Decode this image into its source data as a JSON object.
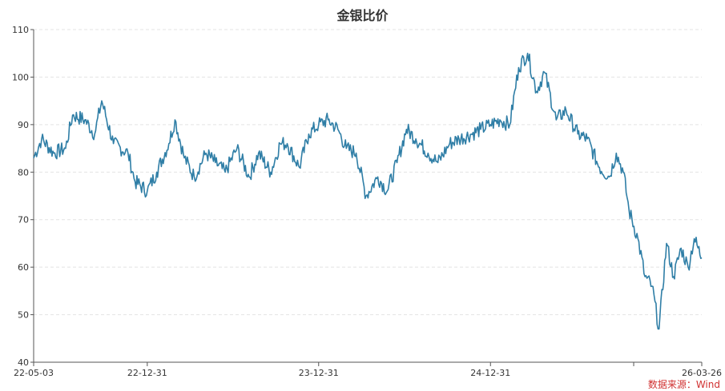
{
  "chart_data": {
    "type": "line",
    "title": "金银比价",
    "xlabel": "",
    "ylabel": "",
    "ylim": [
      40,
      110
    ],
    "yticks": [
      40,
      50,
      60,
      70,
      80,
      90,
      100,
      110
    ],
    "x_tick_labels": [
      "22-05-03",
      "22-12-31",
      "23-12-31",
      "24-12-31",
      "26-03-26"
    ],
    "grid": "horizontal-dashed",
    "series": [
      {
        "name": "",
        "color": "#2f7ea6",
        "x": [
          "2022-05-03",
          "2022-05-20",
          "2022-06-15",
          "2022-07-10",
          "2022-07-25",
          "2022-08-20",
          "2022-09-10",
          "2022-09-25",
          "2022-10-20",
          "2022-11-20",
          "2022-12-05",
          "2022-12-31",
          "2023-01-20",
          "2023-02-15",
          "2023-02-28",
          "2023-03-20",
          "2023-04-10",
          "2023-05-05",
          "2023-05-25",
          "2023-06-15",
          "2023-07-10",
          "2023-08-05",
          "2023-08-25",
          "2023-09-20",
          "2023-10-10",
          "2023-10-25",
          "2023-11-20",
          "2023-12-10",
          "2023-12-31",
          "2024-01-20",
          "2024-02-10",
          "2024-02-28",
          "2024-03-20",
          "2024-04-10",
          "2024-05-05",
          "2024-05-25",
          "2024-06-15",
          "2024-07-05",
          "2024-07-25",
          "2024-08-20",
          "2024-09-10",
          "2024-10-05",
          "2024-10-25",
          "2024-11-20",
          "2024-12-10",
          "2024-12-31",
          "2025-01-20",
          "2025-02-10",
          "2025-03-01",
          "2025-03-20",
          "2025-04-08",
          "2025-04-25",
          "2025-05-20",
          "2025-06-10",
          "2025-07-05",
          "2025-07-25",
          "2025-08-20",
          "2025-09-10",
          "2025-09-25",
          "2025-10-10",
          "2025-10-22",
          "2025-11-10",
          "2025-11-25",
          "2025-12-10",
          "2025-12-25",
          "2026-01-10",
          "2026-01-25",
          "2026-02-10",
          "2026-02-25",
          "2026-03-10",
          "2026-03-26"
        ],
        "values": [
          83,
          87,
          84,
          85,
          92,
          91,
          88,
          95,
          86,
          84,
          78,
          76,
          80,
          86,
          91,
          83,
          79,
          84,
          82,
          80,
          85,
          79,
          84,
          80,
          86,
          86,
          81,
          88,
          90,
          91,
          89,
          85,
          84,
          75,
          79,
          76,
          82,
          89,
          87,
          84,
          82,
          86,
          87,
          88,
          89,
          90,
          91,
          90,
          102,
          105,
          97,
          101,
          91,
          93,
          88,
          87,
          81,
          79,
          84,
          80,
          72,
          66,
          58,
          56,
          47,
          65,
          58,
          64,
          60,
          66,
          62
        ]
      }
    ],
    "source": "数据来源：Wind"
  }
}
